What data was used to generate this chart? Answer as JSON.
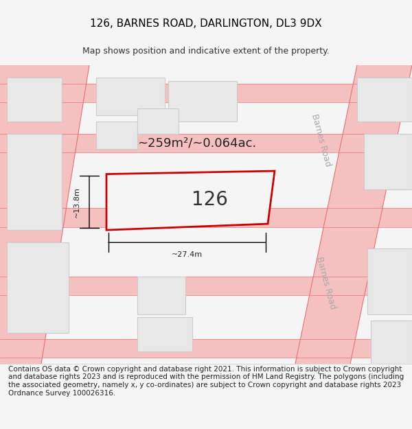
{
  "title": "126, BARNES ROAD, DARLINGTON, DL3 9DX",
  "subtitle": "Map shows position and indicative extent of the property.",
  "footer_text": "Contains OS data © Crown copyright and database right 2021. This information is subject to Crown copyright and database rights 2023 and is reproduced with the permission of HM Land Registry. The polygons (including the associated geometry, namely x, y co-ordinates) are subject to Crown copyright and database rights 2023 Ordnance Survey 100026316.",
  "area_label": "~259m²/~0.064ac.",
  "plot_number": "126",
  "width_label": "~27.4m",
  "height_label": "~13.8m",
  "bg_color": "#f5f5f5",
  "map_bg": "#ffffff",
  "road_color": "#f5c0c0",
  "road_edge_color": "#e87070",
  "building_fill": "#e8e8e8",
  "building_edge": "#cccccc",
  "highlight_fill": "#f0f0f0",
  "highlight_edge": "#cc0000",
  "road_label_color": "#aaaaaa",
  "title_fontsize": 11,
  "subtitle_fontsize": 9,
  "footer_fontsize": 7.5
}
